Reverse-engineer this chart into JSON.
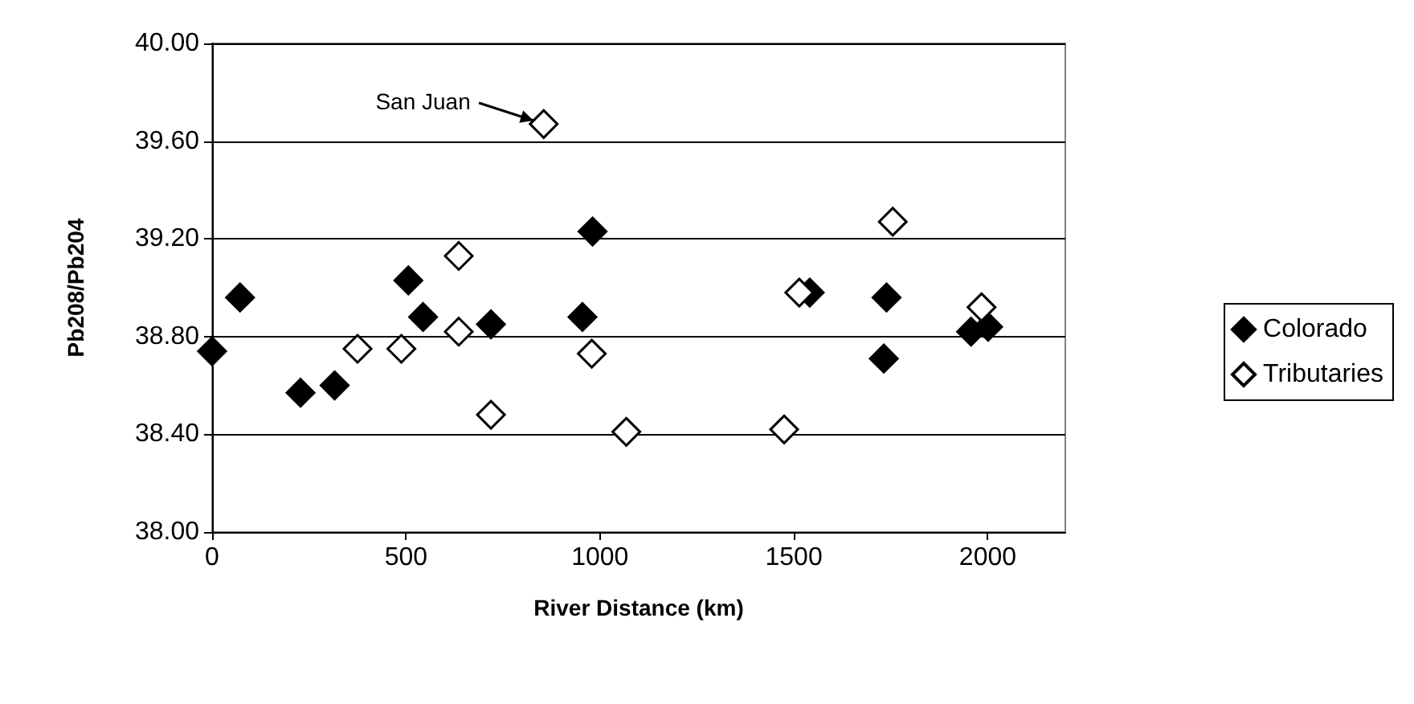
{
  "chart_data": {
    "type": "scatter",
    "xlabel": "River Distance (km)",
    "ylabel": "Pb208/Pb204",
    "xlim": [
      0,
      2200
    ],
    "xticks": [
      0,
      500,
      1000,
      1500,
      2000
    ],
    "ylim": [
      38,
      40
    ],
    "yticks": [
      {
        "value": 38,
        "label": "38.00"
      },
      {
        "value": 38.4,
        "label": "38.40"
      },
      {
        "value": 38.8,
        "label": "38.80"
      },
      {
        "value": 39.2,
        "label": "39.20"
      },
      {
        "value": 39.6,
        "label": "39.60"
      },
      {
        "value": 40,
        "label": "40.00"
      }
    ],
    "grid": "y",
    "legend": "right",
    "marker": "diamond",
    "series": [
      {
        "name": "Colorado",
        "color": "#000000",
        "x": [
          0,
          72,
          228,
          316,
          506,
          544,
          719,
          955,
          981,
          1541,
          1732,
          1739,
          1957,
          2001
        ],
        "values": [
          38.74,
          38.96,
          38.57,
          38.6,
          39.03,
          38.88,
          38.85,
          38.88,
          39.23,
          38.98,
          38.71,
          38.96,
          38.82,
          38.84
        ]
      },
      {
        "name": "Tributaries",
        "color": "#ffffff",
        "x": [
          375,
          488,
          636,
          636,
          719,
          855,
          979,
          1068,
          1475,
          1514,
          1755,
          1984
        ],
        "values": [
          38.75,
          38.75,
          38.82,
          39.13,
          38.48,
          39.67,
          38.73,
          38.41,
          38.42,
          38.98,
          39.27,
          38.92
        ]
      }
    ],
    "annotations": [
      {
        "text": "San Juan",
        "x": 855,
        "y": 39.67
      }
    ]
  }
}
